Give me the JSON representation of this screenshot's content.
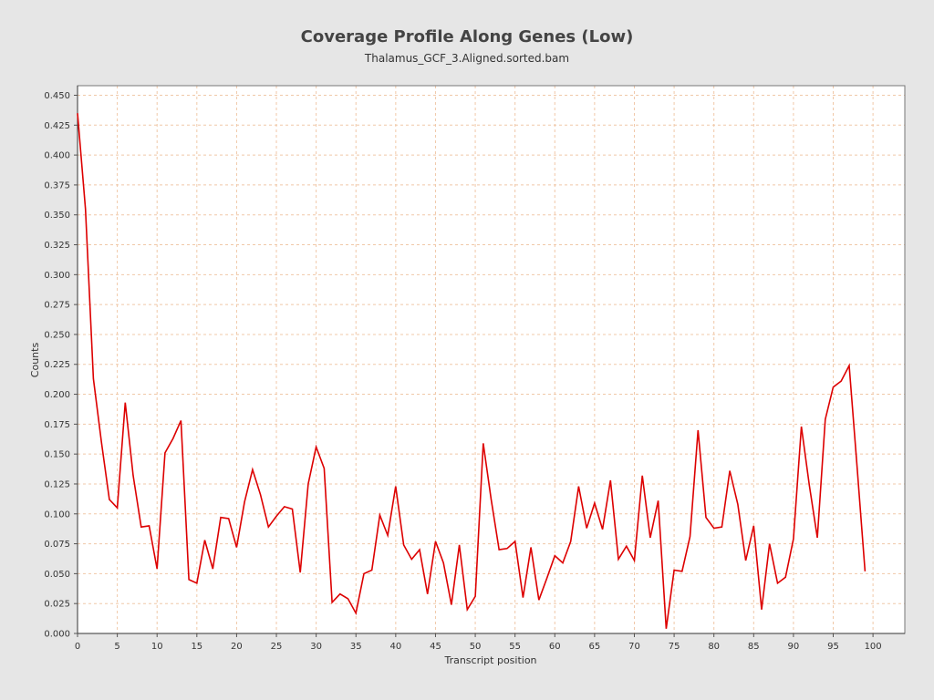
{
  "chart_data": {
    "type": "line",
    "title": "Coverage Profile Along Genes (Low)",
    "subtitle": "Thalamus_GCF_3.Aligned.sorted.bam",
    "xlabel": "Transcript position",
    "ylabel": "Counts",
    "xlim": [
      0,
      104
    ],
    "ylim": [
      0,
      0.458
    ],
    "x_ticks": [
      0,
      5,
      10,
      15,
      20,
      25,
      30,
      35,
      40,
      45,
      50,
      55,
      60,
      65,
      70,
      75,
      80,
      85,
      90,
      95,
      100
    ],
    "y_ticks": [
      "0.000",
      "0.025",
      "0.050",
      "0.075",
      "0.100",
      "0.125",
      "0.150",
      "0.175",
      "0.200",
      "0.225",
      "0.250",
      "0.275",
      "0.300",
      "0.325",
      "0.350",
      "0.375",
      "0.400",
      "0.425",
      "0.450"
    ],
    "grid": true,
    "legend": "none",
    "colors": {
      "line": "#dd0000",
      "grid": "#f0c8a8",
      "plot_bg": "#ffffff"
    },
    "series": [
      {
        "x": [
          0,
          1,
          2,
          3,
          4,
          5,
          6,
          7,
          8,
          9,
          10,
          11,
          12,
          13,
          14,
          15,
          16,
          17,
          18,
          19,
          20,
          21,
          22,
          23,
          24,
          25,
          26,
          27,
          28,
          29,
          30,
          31,
          32,
          33,
          34,
          35,
          36,
          37,
          38,
          39,
          40,
          41,
          42,
          43,
          44,
          45,
          46,
          47,
          48,
          49,
          50,
          51,
          52,
          53,
          54,
          55,
          56,
          57,
          58,
          59,
          60,
          61,
          62,
          63,
          64,
          65,
          66,
          67,
          68,
          69,
          70,
          71,
          72,
          73,
          74,
          75,
          76,
          77,
          78,
          79,
          80,
          81,
          82,
          83,
          84,
          85,
          86,
          87,
          88,
          89,
          90,
          91,
          92,
          93,
          94,
          95,
          96,
          97,
          98,
          99
        ],
        "values": [
          0.435,
          0.355,
          0.213,
          0.16,
          0.112,
          0.105,
          0.193,
          0.132,
          0.089,
          0.09,
          0.054,
          0.151,
          0.163,
          0.178,
          0.045,
          0.042,
          0.078,
          0.054,
          0.097,
          0.096,
          0.072,
          0.11,
          0.137,
          0.116,
          0.089,
          0.098,
          0.106,
          0.104,
          0.051,
          0.125,
          0.156,
          0.138,
          0.026,
          0.033,
          0.029,
          0.017,
          0.05,
          0.053,
          0.099,
          0.082,
          0.123,
          0.074,
          0.062,
          0.07,
          0.033,
          0.077,
          0.059,
          0.024,
          0.074,
          0.02,
          0.031,
          0.159,
          0.112,
          0.07,
          0.071,
          0.077,
          0.03,
          0.072,
          0.028,
          0.046,
          0.065,
          0.059,
          0.077,
          0.123,
          0.088,
          0.109,
          0.087,
          0.128,
          0.062,
          0.073,
          0.061,
          0.132,
          0.08,
          0.111,
          0.004,
          0.053,
          0.052,
          0.081,
          0.17,
          0.097,
          0.088,
          0.089,
          0.136,
          0.108,
          0.061,
          0.09,
          0.02,
          0.075,
          0.042,
          0.047,
          0.079,
          0.173,
          0.124,
          0.08,
          0.179,
          0.206,
          0.211,
          0.224,
          0.139,
          0.052
        ]
      }
    ]
  }
}
